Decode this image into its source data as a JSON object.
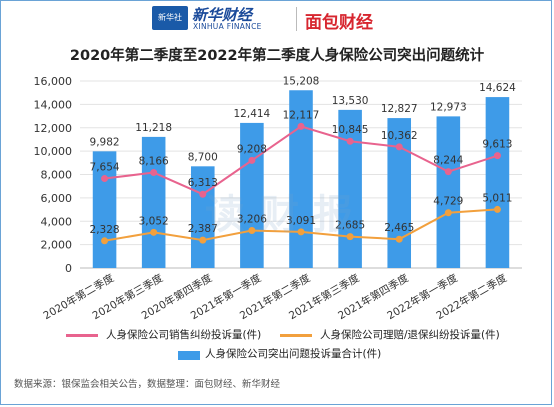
{
  "header": {
    "logo_left_box": "新华社",
    "logo_left_cn": "新华财经",
    "logo_left_en": "XINHUA FINANCE",
    "logo_right": "面包财经"
  },
  "watermark": "读财报",
  "chart_data": {
    "type": "bar",
    "title": "2020年第二季度至2022年第二季度人身保险公司突出问题统计",
    "categories": [
      "2020年第二季度",
      "2020年第三季度",
      "2020年第四季度",
      "2021年第一季度",
      "2021年第二季度",
      "2021年第三季度",
      "2021年第四季度",
      "2022年第一季度",
      "2022年第二季度"
    ],
    "ylim": [
      0,
      16000
    ],
    "yticks": [
      "0",
      "2,000",
      "4,000",
      "6,000",
      "8,000",
      "10,000",
      "12,000",
      "14,000",
      "16,000"
    ],
    "grid": true,
    "legend_position": "bottom",
    "series": [
      {
        "name": "人身保险公司突出问题投诉量合计(件)",
        "kind": "bar",
        "color": "#3e9be8",
        "values": [
          9982,
          11218,
          8700,
          12414,
          15208,
          13530,
          12827,
          12973,
          14624
        ],
        "labels": [
          "9,982",
          "11,218",
          "8,700",
          "12,414",
          "15,208",
          "13,530",
          "12,827",
          "12,973",
          "14,624"
        ]
      },
      {
        "name": "人身保险公司销售纠纷投诉量(件)",
        "kind": "line",
        "color": "#e8638e",
        "values": [
          7654,
          8166,
          6313,
          9208,
          12117,
          10845,
          10362,
          8244,
          9613
        ],
        "labels": [
          "7,654",
          "8,166",
          "6,313",
          "9,208",
          "12,117",
          "10,845",
          "10,362",
          "8,244",
          "9,613"
        ]
      },
      {
        "name": "人身保险公司理赔/退保纠纷投诉量(件)",
        "kind": "line",
        "color": "#f2a03d",
        "values": [
          2328,
          3052,
          2387,
          3206,
          3091,
          2685,
          2465,
          4729,
          5011
        ],
        "labels": [
          "2,328",
          "3,052",
          "2,387",
          "3,206",
          "3,091",
          "2,685",
          "2,465",
          "4,729",
          "5,011"
        ]
      }
    ]
  },
  "source": "数据来源：银保监会相关公告，数据整理：面包财经、新华财经"
}
